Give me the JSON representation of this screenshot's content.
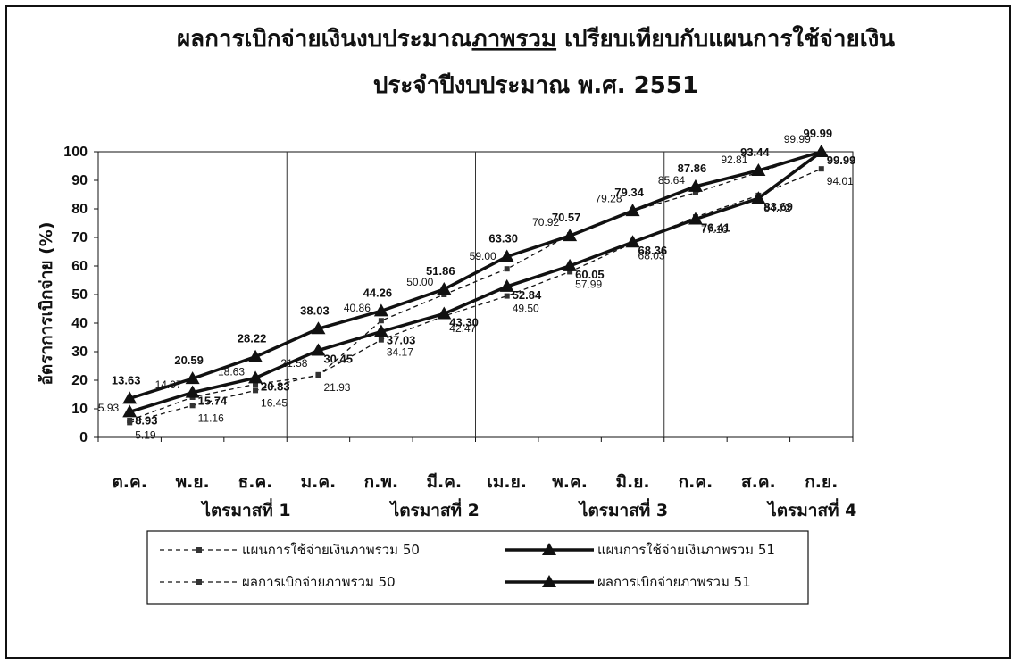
{
  "chart_data": {
    "type": "line",
    "title_line1": "ผลการเบิกจ่ายเงินงบประมาณภาพรวม เปรียบเทียบกับแผนการใช้จ่ายเงิน",
    "title_line1_pre": "ผลการเบิกจ่ายเงินงบประมาณ",
    "title_line1_underlined": "ภาพรวม",
    "title_line1_post": " เปรียบเทียบกับแผนการใช้จ่ายเงิน",
    "title_line2": "ประจำปีงบประมาณ พ.ศ. 2551",
    "ylabel": "อัตราการเบิกจ่าย (%)",
    "ylim": [
      0,
      100
    ],
    "yticks": [
      "0",
      "10",
      "20",
      "30",
      "40",
      "50",
      "60",
      "70",
      "80",
      "90",
      "100"
    ],
    "categories": [
      "ต.ค.",
      "พ.ย.",
      "ธ.ค.",
      "ม.ค.",
      "ก.พ.",
      "มี.ค.",
      "เม.ย.",
      "พ.ค.",
      "มิ.ย.",
      "ก.ค.",
      "ส.ค.",
      "ก.ย."
    ],
    "quarters": [
      "ไตรมาสที่ 1",
      "ไตรมาสที่ 2",
      "ไตรมาสที่ 3",
      "ไตรมาสที่ 4"
    ],
    "series": [
      {
        "name": "แผนการใช้จ่ายเงินภาพรวม 50",
        "style": "dashed-square",
        "values": [
          5.93,
          14.07,
          18.63,
          21.58,
          40.86,
          50.0,
          59.0,
          70.92,
          79.28,
          85.64,
          92.81,
          99.99
        ],
        "labels": [
          "5.93",
          "14.07",
          "18.63",
          "21.58",
          "40.86",
          "50.00",
          "59.00",
          "70.92",
          "79.28",
          "85.64",
          "92.81",
          "99.99"
        ]
      },
      {
        "name": "แผนการใช้จ่ายเงินภาพรวม 51",
        "style": "thick-triangle",
        "values": [
          13.63,
          20.59,
          28.22,
          38.03,
          44.26,
          51.86,
          63.3,
          70.57,
          79.34,
          87.86,
          93.44,
          99.99
        ],
        "labels": [
          "13.63",
          "20.59",
          "28.22",
          "38.03",
          "44.26",
          "51.86",
          "63.30",
          "70.57",
          "79.34",
          "87.86",
          "93.44",
          "99.99"
        ]
      },
      {
        "name": "ผลการเบิกจ่ายภาพรวม 50",
        "style": "dashed-square",
        "values": [
          5.19,
          11.16,
          16.45,
          21.93,
          34.17,
          42.47,
          49.5,
          57.99,
          68.03,
          77.16,
          84.72,
          94.01
        ],
        "labels": [
          "5.19",
          "11.16",
          "16.45",
          "21.93",
          "34.17",
          "42.47",
          "49.50",
          "57.99",
          "68.03",
          "77.16",
          "84.72",
          "94.01"
        ]
      },
      {
        "name": "ผลการเบิกจ่ายภาพรวม 51",
        "style": "thick-triangle",
        "values": [
          8.93,
          15.74,
          20.83,
          30.45,
          37.03,
          43.3,
          52.84,
          60.05,
          68.36,
          76.41,
          83.69,
          99.99
        ],
        "labels": [
          "8.93",
          "15.74",
          "20.83",
          "30.45",
          "37.03",
          "43.30",
          "52.84",
          "60.05",
          "68.36",
          "76.41",
          "83.69",
          "99.99"
        ]
      }
    ]
  }
}
